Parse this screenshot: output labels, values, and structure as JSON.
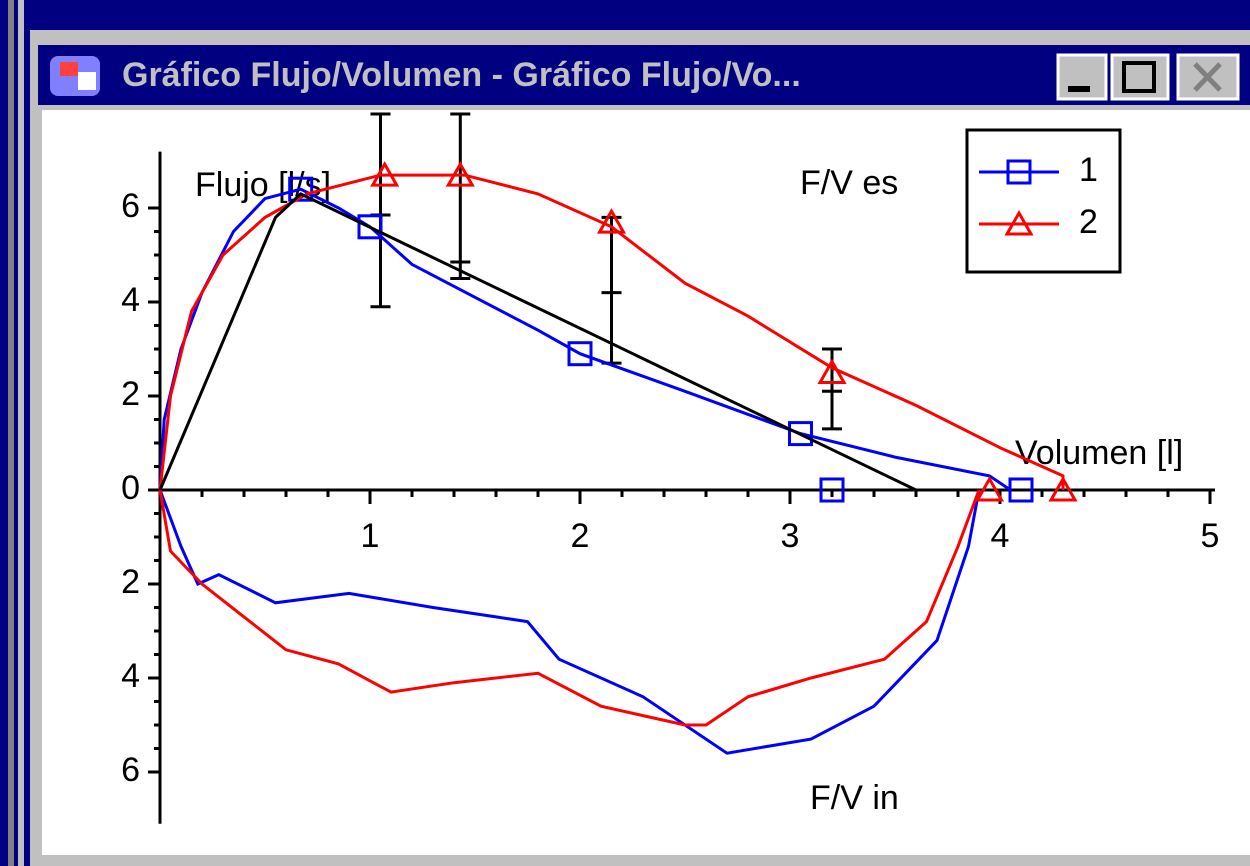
{
  "window": {
    "title": "Gráfico Flujo/Volumen - Gráfico Flujo/Vo..."
  },
  "chart_data": {
    "type": "line",
    "y_label": "Flujo [l/s]",
    "x_label": "Volumen [l]",
    "annotations": [
      "F/V es",
      "F/V in"
    ],
    "xlim": [
      0,
      5
    ],
    "ylim": [
      -7.1,
      7.2
    ],
    "xticks": [
      1,
      2,
      3,
      4,
      5
    ],
    "yticks": [
      {
        "value": -6,
        "label": "6"
      },
      {
        "value": -4,
        "label": "4"
      },
      {
        "value": -2,
        "label": "2"
      },
      0,
      2,
      4,
      6
    ],
    "legend": "upper right",
    "series": [
      {
        "name": "1",
        "color": "#0000ff",
        "marker": "square",
        "x": [
          0,
          0.02,
          0.1,
          0.2,
          0.35,
          0.5,
          0.67,
          0.85,
          1.0,
          1.2,
          1.5,
          1.8,
          2.0,
          2.5,
          3.05,
          3.5,
          3.95,
          4.05,
          null,
          0,
          0.1,
          0.18,
          0.28,
          0.55,
          0.9,
          1.3,
          1.6,
          1.75,
          1.9,
          2.3,
          2.7,
          3.1,
          3.4,
          3.7,
          3.85,
          3.9
        ],
        "values": [
          0,
          1.5,
          3,
          4.2,
          5.5,
          6.2,
          6.4,
          6.0,
          5.6,
          4.8,
          4.1,
          3.4,
          2.9,
          2.1,
          1.2,
          0.7,
          0.3,
          0,
          null,
          0,
          -1.2,
          -2.0,
          -1.8,
          -2.4,
          -2.2,
          -2.5,
          -2.7,
          -2.8,
          -3.6,
          -4.4,
          -5.6,
          -5.3,
          -4.6,
          -3.2,
          -1.2,
          0
        ],
        "markers": {
          "x": [
            0.67,
            1.0,
            2.0,
            3.05,
            3.2,
            4.1
          ],
          "values": [
            6.4,
            5.6,
            2.9,
            1.2,
            0,
            0
          ]
        }
      },
      {
        "name": "2",
        "color": "#ff0000",
        "marker": "triangle",
        "x": [
          0,
          0.05,
          0.15,
          0.3,
          0.5,
          0.7,
          1.05,
          1.45,
          1.8,
          2.15,
          2.5,
          2.8,
          3.2,
          3.6,
          4.0,
          4.3,
          4.3,
          null,
          0,
          0.05,
          0.2,
          0.4,
          0.6,
          0.85,
          1.1,
          1.4,
          1.8,
          2.1,
          2.3,
          2.5,
          2.6,
          2.8,
          3.1,
          3.45,
          3.65,
          3.8,
          3.9
        ],
        "values": [
          0,
          2,
          3.8,
          5.0,
          5.8,
          6.3,
          6.7,
          6.7,
          6.3,
          5.6,
          4.4,
          3.7,
          2.6,
          1.8,
          0.9,
          0.3,
          0,
          null,
          0,
          -1.3,
          -2.0,
          -2.7,
          -3.4,
          -3.7,
          -4.3,
          -4.1,
          -3.9,
          -4.6,
          -4.8,
          -5.0,
          -5.0,
          -4.4,
          -4.0,
          -3.6,
          -2.8,
          -1.2,
          0
        ],
        "markers": {
          "x": [
            1.07,
            1.43,
            2.15,
            3.2,
            3.95,
            4.3
          ],
          "values": [
            6.7,
            6.7,
            5.7,
            2.5,
            0,
            0
          ]
        }
      },
      {
        "color": "#000000",
        "x": [
          0,
          0.55,
          0.67,
          3.6
        ],
        "values": [
          0,
          5.8,
          6.3,
          0
        ]
      }
    ],
    "error_bars": {
      "x": [
        1.05,
        1.43,
        2.15,
        3.2
      ],
      "mid": [
        5.85,
        4.85,
        4.2,
        2.1
      ],
      "low": [
        3.9,
        4.5,
        2.7,
        1.3
      ],
      "high": [
        8.0,
        8.0,
        5.8,
        3.0
      ]
    }
  }
}
